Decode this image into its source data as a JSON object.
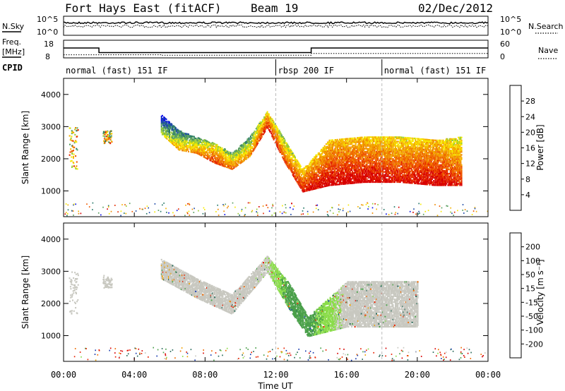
{
  "header": {
    "title": "Fort Hays East (fitACF)",
    "beam": "Beam 19",
    "date": "02/Dec/2012"
  },
  "noise_panel": {
    "left_label": "N.Sky",
    "right_label": "N.Search",
    "left_ticks": [
      "10^5",
      "10^0"
    ],
    "right_ticks": [
      "10^5",
      "10^0"
    ]
  },
  "freq_panel": {
    "left_label_line1": "Freq.",
    "left_label_line2": "[MHz]",
    "right_label": "Nave",
    "left_ticks": [
      "18",
      "8"
    ],
    "right_ticks": [
      "60",
      "0"
    ],
    "freq_steps": [
      {
        "t_start": 0.0,
        "t_end": 2.0,
        "mhz": 15.5
      },
      {
        "t_start": 2.0,
        "t_end": 14.0,
        "mhz": 12.0
      },
      {
        "t_start": 14.0,
        "t_end": 24.0,
        "mhz": 15.5
      }
    ],
    "nave_steps": [
      {
        "t_start": 0.0,
        "t_end": 5.5,
        "nave": 14
      },
      {
        "t_start": 5.5,
        "t_end": 14.0,
        "nave": 12
      },
      {
        "t_start": 14.0,
        "t_end": 24.0,
        "nave": 20
      }
    ]
  },
  "cpid": {
    "label": "CPID",
    "segments": [
      {
        "t_start": 0.0,
        "text": "normal (fast) 151 IF"
      },
      {
        "t_start": 12.0,
        "text": "rbsp 200 IF"
      },
      {
        "t_start": 18.0,
        "text": "normal (fast) 151 IF"
      }
    ]
  },
  "chart_data": [
    {
      "type": "heatmap",
      "title": "",
      "xlabel": "",
      "ylabel": "Slant Range [km]",
      "colorbar_label": "Power [dB]",
      "colorbar_ticks": [
        "28",
        "24",
        "20",
        "16",
        "12",
        "8",
        "4"
      ],
      "colorbar_values": [
        28,
        24,
        20,
        16,
        12,
        8,
        4
      ],
      "colorbar_range": [
        0,
        32
      ],
      "colors": [
        "#0c10e8",
        "#1e4aa8",
        "#2a7a6a",
        "#5aa060",
        "#9acd32",
        "#f7e900",
        "#f5b400",
        "#f08a00",
        "#ef5a00",
        "#e52a00",
        "#d80000"
      ],
      "ylim": [
        200,
        4500
      ],
      "yticks": [
        1000,
        2000,
        3000,
        4000
      ],
      "xlim": [
        0,
        24
      ],
      "echo_band": [
        {
          "t": 5.5,
          "range_low": 2800,
          "range_high": 3400,
          "power_db": 8
        },
        {
          "t": 6.5,
          "range_low": 2300,
          "range_high": 2900,
          "power_db": 14
        },
        {
          "t": 7.5,
          "range_low": 2200,
          "range_high": 2700,
          "power_db": 16
        },
        {
          "t": 8.5,
          "range_low": 1900,
          "range_high": 2500,
          "power_db": 22
        },
        {
          "t": 9.5,
          "range_low": 1700,
          "range_high": 2200,
          "power_db": 18
        },
        {
          "t": 10.5,
          "range_low": 2100,
          "range_high": 2700,
          "power_db": 16
        },
        {
          "t": 11.5,
          "range_low": 3000,
          "range_high": 3500,
          "power_db": 24
        },
        {
          "t": 12.5,
          "range_low": 1900,
          "range_high": 2600,
          "power_db": 20
        },
        {
          "t": 13.5,
          "range_low": 1000,
          "range_high": 1700,
          "power_db": 24
        },
        {
          "t": 15.0,
          "range_low": 1200,
          "range_high": 2600,
          "power_db": 26
        },
        {
          "t": 17.0,
          "range_low": 1300,
          "range_high": 2700,
          "power_db": 26
        },
        {
          "t": 19.0,
          "range_low": 1300,
          "range_high": 2700,
          "power_db": 24
        },
        {
          "t": 21.0,
          "range_low": 1200,
          "range_high": 2600,
          "power_db": 26
        },
        {
          "t": 22.5,
          "range_low": 1200,
          "range_high": 2700,
          "power_db": 22
        }
      ]
    },
    {
      "type": "heatmap",
      "title": "",
      "xlabel": "Time UT",
      "ylabel": "Slant Range [km]",
      "colorbar_label": "Velocity [m s⁻¹]",
      "colorbar_ticks": [
        "200",
        "100",
        "50",
        "15",
        "-15",
        "-50",
        "-100",
        "-200"
      ],
      "colorbar_values": [
        200,
        100,
        50,
        15,
        -15,
        -50,
        -100,
        -200
      ],
      "colors": [
        "#1a3cb0",
        "#2a6a5a",
        "#4aa04a",
        "#8adc4a",
        "#c8c8c0",
        "#f0a000",
        "#ef6a00",
        "#e82000",
        "#d80000"
      ],
      "ylim": [
        200,
        4500
      ],
      "yticks": [
        1000,
        2000,
        3000,
        4000
      ],
      "xlim": [
        0,
        24
      ],
      "xticks": [
        "00:00",
        "04:00",
        "08:00",
        "12:00",
        "16:00",
        "20:00",
        "00:00"
      ],
      "echo_band": [
        {
          "t": 5.5,
          "range_low": 2800,
          "range_high": 3400,
          "velocity": -5
        },
        {
          "t": 7.5,
          "range_low": 2200,
          "range_high": 2800,
          "velocity": 0
        },
        {
          "t": 9.5,
          "range_low": 1700,
          "range_high": 2300,
          "velocity": 0
        },
        {
          "t": 11.5,
          "range_low": 3000,
          "range_high": 3500,
          "velocity": 5
        },
        {
          "t": 12.8,
          "range_low": 1800,
          "range_high": 2600,
          "velocity": 40
        },
        {
          "t": 13.8,
          "range_low": 1000,
          "range_high": 1600,
          "velocity": 40
        },
        {
          "t": 16.0,
          "range_low": 1300,
          "range_high": 2700,
          "velocity": 0
        },
        {
          "t": 20.0,
          "range_low": 1300,
          "range_high": 2700,
          "velocity": 0
        }
      ]
    }
  ]
}
